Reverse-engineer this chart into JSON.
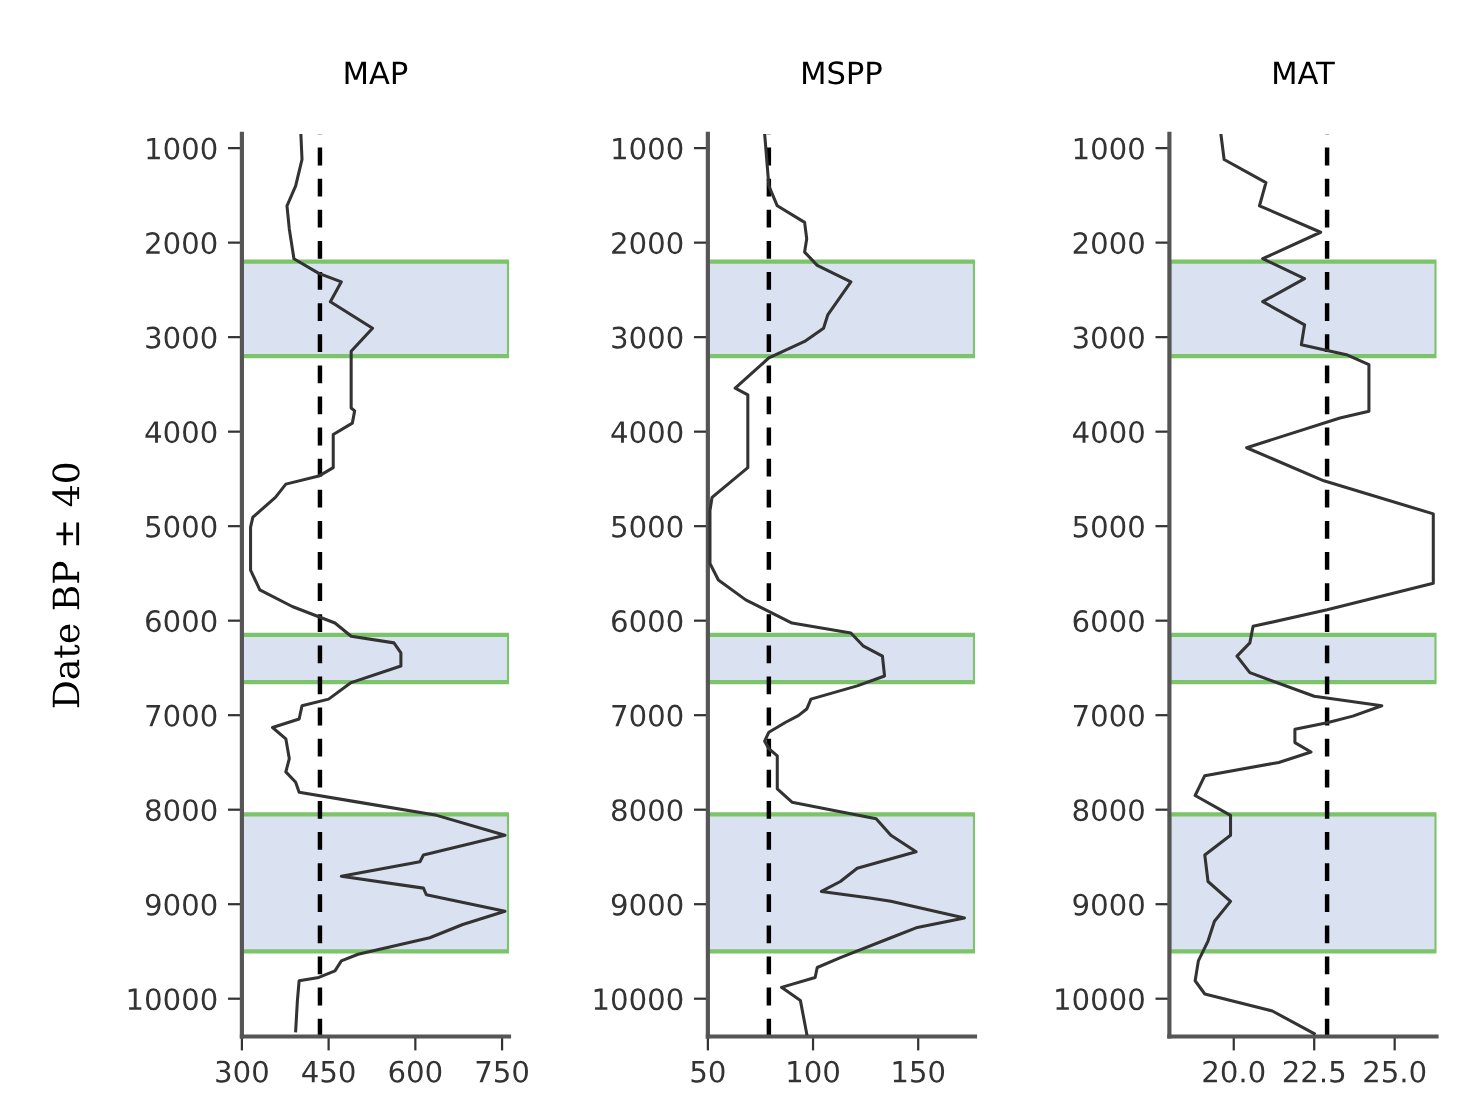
{
  "chart_data": [
    {
      "type": "line",
      "title": "MAP",
      "ylabel": "Date BP ± 40",
      "xlim": [
        300,
        762
      ],
      "xticks": [
        300,
        450,
        600,
        750
      ],
      "ylim": [
        10400,
        850
      ],
      "yticks": [
        1000,
        2000,
        3000,
        4000,
        5000,
        6000,
        7000,
        8000,
        9000,
        10000
      ],
      "grid": false,
      "legend": false,
      "marker": "none",
      "line_style": "solid",
      "series": [
        {
          "color": "#333333",
          "x": [
            402,
            404,
            393,
            378,
            382,
            390,
            433,
            472,
            453,
            526,
            489,
            489,
            495,
            491,
            458,
            458,
            433,
            376,
            358,
            319,
            315,
            315,
            331,
            387,
            461,
            489,
            563,
            575,
            575,
            489,
            450,
            404,
            399,
            353,
            376,
            382,
            376,
            393,
            399,
            501,
            637,
            755,
            614,
            608,
            472,
            614,
            619,
            755,
            682,
            625,
            501,
            472,
            461,
            433,
            399,
            396,
            393
          ],
          "values": [
            850,
            1120,
            1400,
            1610,
            1855,
            2170,
            2325,
            2415,
            2625,
            2905,
            3150,
            3750,
            3780,
            3910,
            4030,
            4380,
            4470,
            4555,
            4695,
            4905,
            5010,
            5465,
            5675,
            5850,
            6025,
            6165,
            6235,
            6340,
            6480,
            6655,
            6830,
            6900,
            7040,
            7130,
            7250,
            7460,
            7600,
            7710,
            7815,
            7920,
            8060,
            8270,
            8480,
            8550,
            8705,
            8830,
            8900,
            9075,
            9215,
            9355,
            9530,
            9600,
            9705,
            9775,
            9810,
            10020,
            10340
          ]
        }
      ],
      "ref_lines": [
        {
          "axis": "x",
          "value": 435,
          "color": "#000000",
          "line_style": "dashed"
        }
      ],
      "bands": [
        {
          "axis": "y",
          "from": 2200,
          "to": 3200,
          "color": "#dae1f0"
        },
        {
          "axis": "y",
          "from": 6150,
          "to": 6650,
          "color": "#dae1f0"
        },
        {
          "axis": "y",
          "from": 8050,
          "to": 9500,
          "color": "#dae1f0"
        }
      ]
    },
    {
      "type": "line",
      "title": "MSPP",
      "xlim": [
        50,
        177
      ],
      "xticks": [
        50,
        100,
        150
      ],
      "ylim": [
        10400,
        850
      ],
      "yticks": [
        1000,
        2000,
        3000,
        4000,
        5000,
        6000,
        7000,
        8000,
        9000,
        10000
      ],
      "grid": false,
      "legend": false,
      "marker": "none",
      "line_style": "solid",
      "series": [
        {
          "color": "#333333",
          "x": [
            77,
            79,
            83,
            96,
            97,
            96,
            102,
            118,
            107,
            105,
            96,
            79,
            72,
            63,
            69,
            69,
            52,
            51,
            51,
            55,
            68,
            90,
            118,
            124,
            133,
            134,
            121,
            99,
            97,
            93,
            87,
            79,
            77,
            79,
            83,
            83,
            90,
            130,
            137,
            149,
            121,
            113,
            104,
            127,
            137,
            172,
            149,
            137,
            113,
            102,
            101,
            85,
            94,
            97
          ],
          "values": [
            850,
            1400,
            1610,
            1785,
            1960,
            2100,
            2240,
            2415,
            2765,
            2905,
            3045,
            3220,
            3360,
            3540,
            3610,
            4380,
            4695,
            4835,
            5395,
            5570,
            5780,
            6025,
            6130,
            6270,
            6375,
            6585,
            6690,
            6830,
            6935,
            7005,
            7075,
            7180,
            7275,
            7355,
            7430,
            7780,
            7920,
            8095,
            8270,
            8445,
            8620,
            8760,
            8865,
            8935,
            8970,
            9145,
            9250,
            9355,
            9565,
            9670,
            9775,
            9880,
            10020,
            10370
          ]
        }
      ],
      "ref_lines": [
        {
          "axis": "x",
          "value": 79,
          "color": "#000000",
          "line_style": "dashed"
        }
      ],
      "bands": [
        {
          "axis": "y",
          "from": 2200,
          "to": 3200,
          "color": "#dae1f0"
        },
        {
          "axis": "y",
          "from": 6150,
          "to": 6650,
          "color": "#dae1f0"
        },
        {
          "axis": "y",
          "from": 8050,
          "to": 9500,
          "color": "#dae1f0"
        }
      ]
    },
    {
      "type": "line",
      "title": "MAT",
      "xlim": [
        18,
        26.3
      ],
      "xticks": [
        {
          "value": 20,
          "label": "20.0"
        },
        {
          "value": 22.5,
          "label": "22.5"
        },
        {
          "value": 25,
          "label": "25.0"
        }
      ],
      "ylim": [
        10400,
        850
      ],
      "yticks": [
        1000,
        2000,
        3000,
        4000,
        5000,
        6000,
        7000,
        8000,
        9000,
        10000
      ],
      "grid": false,
      "legend": false,
      "marker": "none",
      "line_style": "solid",
      "series": [
        {
          "color": "#333333",
          "x": [
            19.6,
            19.7,
            21.0,
            20.8,
            22.7,
            20.9,
            22.2,
            20.9,
            22.2,
            22.1,
            23.5,
            24.2,
            24.2,
            23.3,
            20.4,
            22.8,
            26.2,
            26.2,
            22.9,
            20.6,
            20.5,
            20.1,
            20.5,
            22.5,
            24.6,
            23.7,
            22.9,
            21.9,
            21.9,
            22.4,
            21.4,
            19.1,
            18.8,
            19.9,
            19.9,
            19.1,
            19.2,
            19.9,
            19.4,
            19.2,
            18.9,
            18.8,
            19.1,
            21.2,
            22.5
          ],
          "values": [
            850,
            1120,
            1365,
            1610,
            1890,
            2170,
            2380,
            2625,
            2870,
            3080,
            3185,
            3290,
            3785,
            3855,
            4170,
            4520,
            4870,
            5605,
            5885,
            6060,
            6235,
            6375,
            6550,
            6800,
            6900,
            7010,
            7080,
            7150,
            7290,
            7390,
            7500,
            7640,
            7850,
            8060,
            8270,
            8480,
            8760,
            8970,
            9180,
            9390,
            9600,
            9810,
            9950,
            10130,
            10370
          ]
        }
      ],
      "ref_lines": [
        {
          "axis": "x",
          "value": 22.9,
          "color": "#000000",
          "line_style": "dashed"
        }
      ],
      "bands": [
        {
          "axis": "y",
          "from": 2200,
          "to": 3200,
          "color": "#dae1f0"
        },
        {
          "axis": "y",
          "from": 6150,
          "to": 6650,
          "color": "#dae1f0"
        },
        {
          "axis": "y",
          "from": 8050,
          "to": 9500,
          "color": "#dae1f0"
        }
      ]
    }
  ]
}
